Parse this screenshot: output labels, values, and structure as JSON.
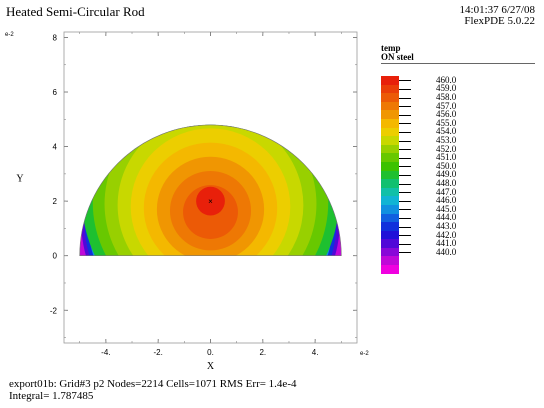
{
  "header": {
    "title": "Heated Semi-Circular Rod",
    "timestamp": "14:01:37 6/27/08",
    "product": "FlexPDE 5.0.22"
  },
  "legend": {
    "variable": "temp",
    "region": "ON steel",
    "colors": [
      "#e8200a",
      "#ea3e08",
      "#ec5a06",
      "#ee7804",
      "#f09602",
      "#f4b800",
      "#ecce00",
      "#c8d800",
      "#98d000",
      "#68c800",
      "#3cc200",
      "#1ec030",
      "#10c070",
      "#10c0a8",
      "#10b4d4",
      "#1090e0",
      "#1060e0",
      "#1030dc",
      "#2010d8",
      "#5008d8",
      "#8808d8",
      "#c008d8",
      "#f000e0"
    ]
  },
  "chart_data": {
    "type": "contour",
    "title": "Heated Semi-Circular Rod",
    "xlabel": "X",
    "ylabel": "Y",
    "x_scale_note": "e-2",
    "y_scale_note": "e-2",
    "xlim": [
      -5.6,
      5.6
    ],
    "ylim": [
      -3.2,
      8.2
    ],
    "x_ticks": [
      -4,
      -2,
      0,
      2,
      4
    ],
    "y_ticks": [
      -2,
      0,
      2,
      4,
      6,
      8
    ],
    "x_tick_labels": [
      "-4.",
      "-2.",
      "0.",
      "2.",
      "4."
    ],
    "y_tick_labels": [
      "-2",
      "0",
      "2",
      "4",
      "6",
      "8"
    ],
    "domain": {
      "shape": "semicircle",
      "radius": 5,
      "center": [
        0,
        0
      ]
    },
    "hot_spot": [
      0,
      2
    ],
    "hot_spot_marker": "×",
    "contour_levels": [
      460.0,
      459.0,
      458.0,
      457.0,
      456.0,
      455.0,
      454.0,
      453.0,
      452.0,
      451.0,
      450.0,
      449.0,
      448.0,
      447.0,
      446.0,
      445.0,
      444.0,
      443.0,
      442.0,
      441.0,
      440.0
    ],
    "contour_level_labels": [
      "460.0",
      "459.0",
      "458.0",
      "457.0",
      "456.0",
      "455.0",
      "454.0",
      "453.0",
      "452.0",
      "451.0",
      "450.0",
      "449.0",
      "448.0",
      "447.0",
      "446.0",
      "445.0",
      "444.0",
      "443.0",
      "442.0",
      "441.0",
      "440.0"
    ],
    "interior_band_radii": [
      1.05,
      1.55,
      2.05,
      2.55,
      3.05,
      3.55,
      4.05,
      4.5,
      4.9
    ]
  },
  "footer": {
    "line1": "export01b:  Grid#3  p2  Nodes=2214 Cells=1071 RMS Err= 1.4e-4",
    "line2": "Integral=  1.787485"
  }
}
